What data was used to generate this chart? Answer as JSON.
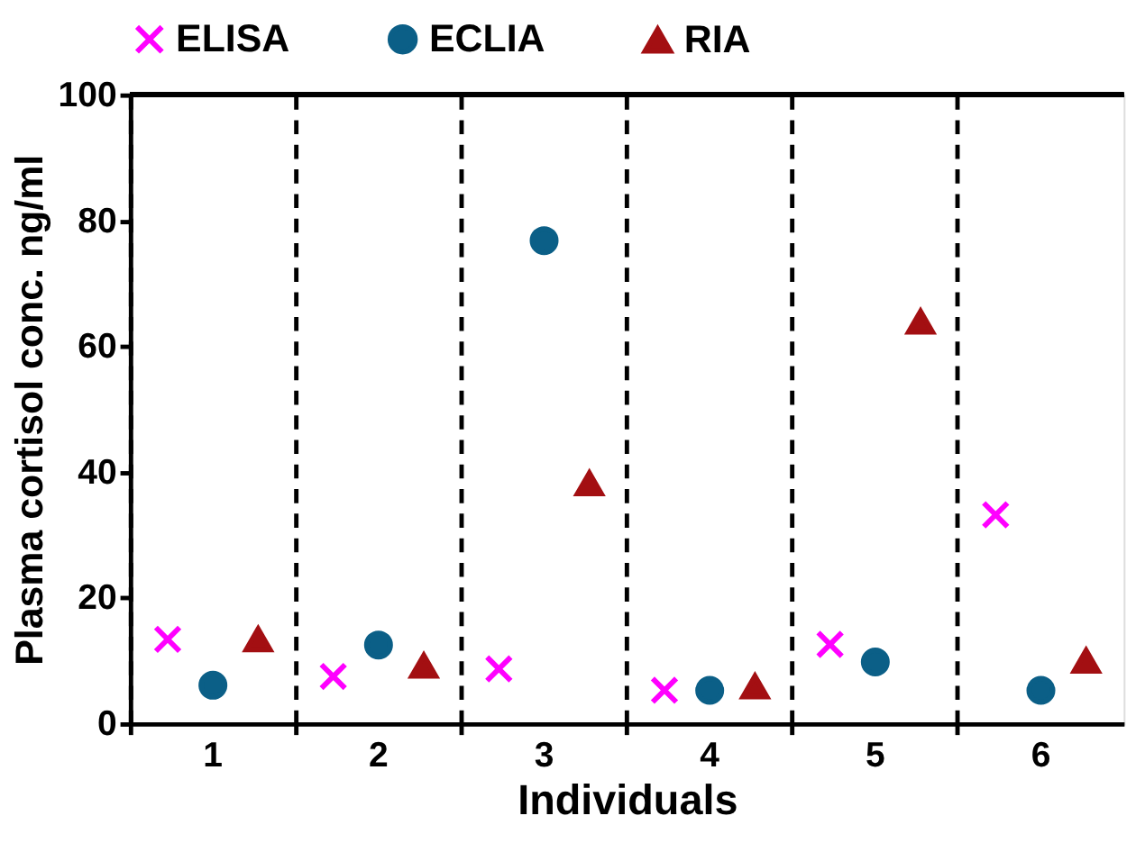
{
  "chart_data": {
    "type": "scatter",
    "xlabel": "Individuals",
    "ylabel": "Plasma cortisol conc. ng/ml",
    "categories": [
      "1",
      "2",
      "3",
      "4",
      "5",
      "6"
    ],
    "series": [
      {
        "name": "ELISA",
        "color": "#ff00ff",
        "marker": "cross",
        "values": [
          13.4,
          7.5,
          8.7,
          5.3,
          12.6,
          33.2
        ]
      },
      {
        "name": "ECLIA",
        "color": "#0b5f87",
        "marker": "circle",
        "values": [
          6.1,
          12.5,
          76.8,
          5.3,
          9.8,
          5.3
        ]
      },
      {
        "name": "RIA",
        "color": "#a30f12",
        "marker": "triangle",
        "values": [
          13.4,
          9.2,
          38.2,
          5.9,
          63.9,
          10.0
        ]
      }
    ],
    "ylim": [
      0,
      100
    ],
    "yticks": [
      0,
      20,
      40,
      60,
      80,
      100
    ],
    "grid": "x",
    "legend": "top"
  }
}
